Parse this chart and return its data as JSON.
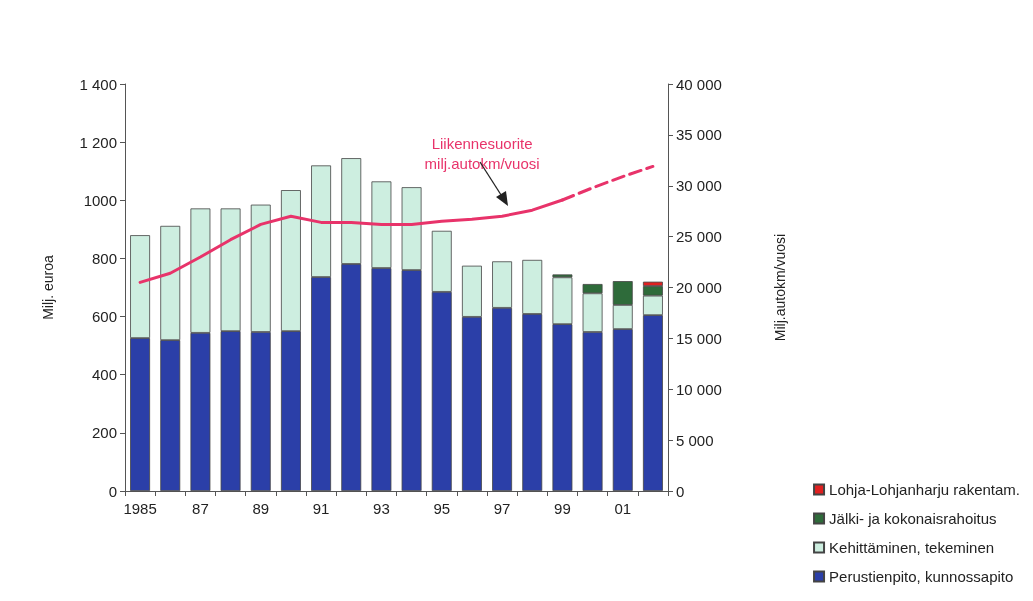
{
  "chart_data": {
    "type": "bar",
    "stacked": true,
    "categories": [
      "1985",
      null,
      "87",
      null,
      "89",
      null,
      "91",
      null,
      "93",
      null,
      "95",
      null,
      "97",
      null,
      "99",
      null,
      "01",
      null
    ],
    "ylabel": "Milj. euroa",
    "y2label": "Milj.autokm/vuosi",
    "ylim": [
      0,
      1400
    ],
    "yticks": [
      0,
      200,
      400,
      600,
      800,
      1000,
      {
        "value": 1200,
        "label": "1 200"
      },
      {
        "value": 1400,
        "label": "1 400"
      }
    ],
    "y2lim": [
      0,
      40000
    ],
    "y2ticks": [
      0,
      {
        "value": 5000,
        "label": "5 000"
      },
      {
        "value": 10000,
        "label": "10 000"
      },
      {
        "value": 15000,
        "label": "15 000"
      },
      {
        "value": 20000,
        "label": "20 000"
      },
      {
        "value": 25000,
        "label": "25 000"
      },
      {
        "value": 30000,
        "label": "30 000"
      },
      {
        "value": 35000,
        "label": "35 000"
      },
      {
        "value": 40000,
        "label": "40 000"
      }
    ],
    "grid": false,
    "legend": "bottom right",
    "series": [
      {
        "name": "Perustienpito, kunnossapito",
        "color": "#2b3fa8",
        "values": [
          526,
          519,
          544,
          550,
          547,
          550,
          736,
          781,
          767,
          760,
          685,
          599,
          630,
          609,
          574,
          547,
          557,
          605
        ]
      },
      {
        "name": "Kehittäminen, tekeminen",
        "color": "#cdeee0",
        "values": [
          354,
          393,
          428,
          422,
          438,
          485,
          384,
          364,
          298,
          285,
          210,
          176,
          160,
          186,
          161,
          133,
          83,
          67
        ]
      },
      {
        "name": "Jälki- ja kokonaisrahoitus",
        "color": "#2e6b3a",
        "values": [
          null,
          null,
          null,
          null,
          null,
          null,
          null,
          null,
          null,
          null,
          null,
          null,
          null,
          null,
          10,
          32,
          82,
          33
        ]
      },
      {
        "name": "Lohja-Lohjanharju rakentam.",
        "color": "#e02020",
        "values": [
          null,
          null,
          null,
          null,
          null,
          null,
          null,
          null,
          null,
          null,
          null,
          null,
          null,
          null,
          null,
          null,
          null,
          15
        ]
      },
      {
        "name": "Liikennesuorite milj.autokm/vuosi",
        "type": "line",
        "axis": "y2",
        "color": "#e8336a",
        "line_style": "solid",
        "values": [
          20500,
          21400,
          23000,
          24700,
          26200,
          27000,
          26400,
          26400,
          26200,
          26200,
          26500,
          26700,
          27000,
          27600,
          28600,
          null,
          null,
          null
        ]
      },
      {
        "type": "line",
        "axis": "y2",
        "color": "#e8336a",
        "line_style": "dashed",
        "values": [
          null,
          null,
          null,
          null,
          null,
          null,
          null,
          null,
          null,
          null,
          null,
          null,
          null,
          null,
          28600,
          29800,
          30900,
          31900
        ]
      }
    ]
  }
}
